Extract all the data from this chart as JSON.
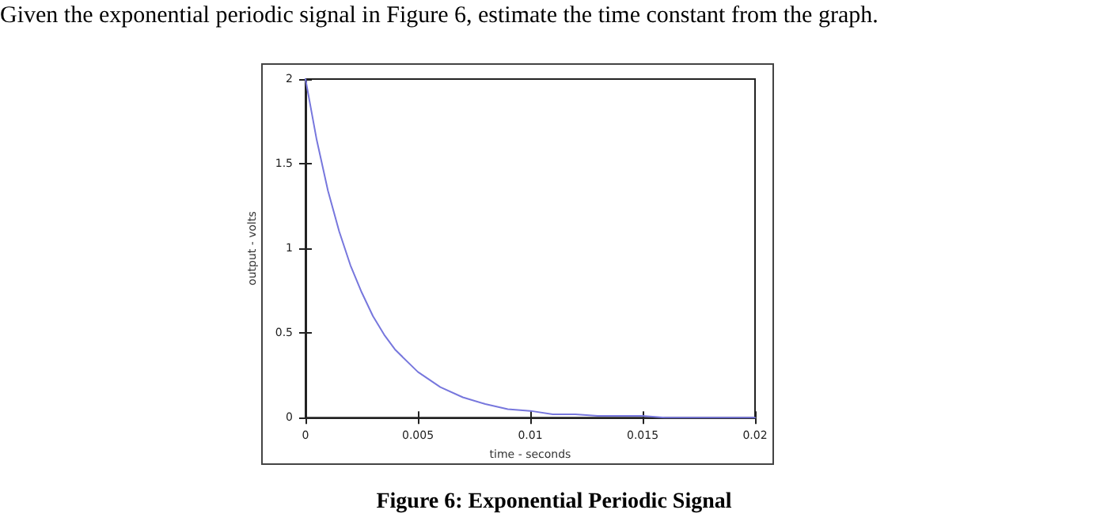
{
  "chart_data": {
    "type": "line",
    "title": "Given the exponential periodic signal in Figure 6, estimate the time constant from the graph.",
    "xlabel": "time - seconds",
    "ylabel": "output - volts",
    "annotations": [
      "Figure 6: Exponential Periodic Signal"
    ],
    "x": [
      0,
      0.0005,
      0.001,
      0.0015,
      0.002,
      0.0025,
      0.003,
      0.0035,
      0.004,
      0.005,
      0.006,
      0.007,
      0.008,
      0.009,
      0.01,
      0.011,
      0.012,
      0.013,
      0.014,
      0.015,
      0.016,
      0.017,
      0.018,
      0.019,
      0.02
    ],
    "series": [
      {
        "color": "#7777dd",
        "values": [
          2,
          1.64,
          1.34,
          1.1,
          0.9,
          0.74,
          0.6,
          0.49,
          0.4,
          0.27,
          0.18,
          0.12,
          0.08,
          0.05,
          0.04,
          0.02,
          0.02,
          0.01,
          0.01,
          0.01,
          0,
          0,
          0,
          0,
          0
        ]
      }
    ],
    "xlim": [
      0,
      0.02
    ],
    "xticks": [
      0,
      0.005,
      0.01,
      0.015,
      0.02
    ],
    "ylim": [
      0,
      2
    ],
    "yticks": [
      0,
      0.5,
      1,
      1.5,
      2
    ],
    "grid": false,
    "marker": "none",
    "line_style": "solid"
  }
}
